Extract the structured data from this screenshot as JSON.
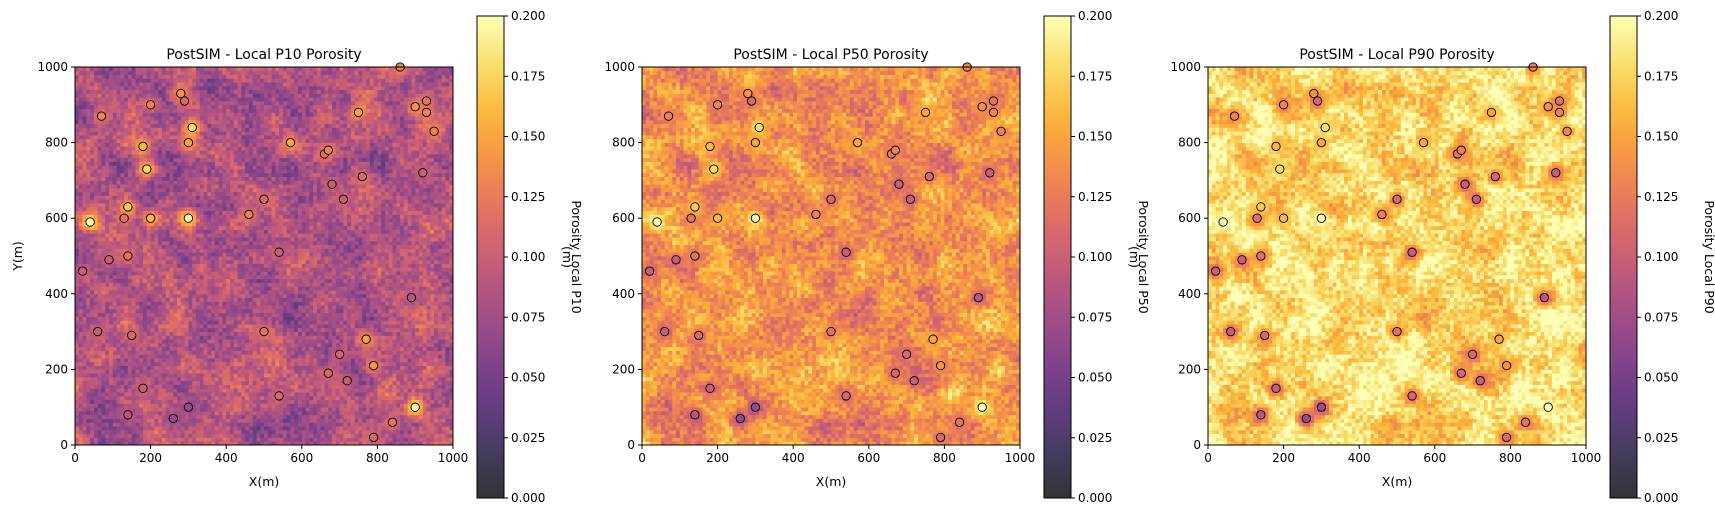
{
  "colormap": {
    "name": "inferno",
    "stops": [
      "#000004",
      "#1b0c41",
      "#4a0c6b",
      "#781c6d",
      "#a52c60",
      "#cf4446",
      "#ed6925",
      "#fb9b06",
      "#f7d13d",
      "#fcffa4"
    ],
    "alpha": 0.8
  },
  "marker_edge_color": "#000000",
  "chart_data": [
    {
      "type": "heatmap",
      "title": "PostSIM - Local P10 Porosity",
      "xlabel": "X(m)",
      "ylabel": "Y(m)",
      "xlim": [
        0,
        1000
      ],
      "ylim": [
        0,
        1000
      ],
      "grid_cells": [
        100,
        100
      ],
      "mean_porosity": 0.085,
      "xticks": [
        "0",
        "200",
        "400",
        "600",
        "800",
        "1000"
      ],
      "yticks": [
        "0",
        "200",
        "400",
        "600",
        "800",
        "1000"
      ],
      "colorbar": {
        "label": "Porosity Local P10",
        "extra_label": "(m)",
        "range": [
          0.0,
          0.2
        ],
        "ticks": [
          "0.000",
          "0.025",
          "0.050",
          "0.075",
          "0.100",
          "0.125",
          "0.150",
          "0.175",
          "0.200"
        ]
      }
    },
    {
      "type": "heatmap",
      "title": "PostSIM - Local P50 Porosity",
      "xlabel": "X(m)",
      "ylabel": "",
      "xlim": [
        0,
        1000
      ],
      "ylim": [
        0,
        1000
      ],
      "grid_cells": [
        100,
        100
      ],
      "mean_porosity": 0.14,
      "xticks": [
        "0",
        "200",
        "400",
        "600",
        "800",
        "1000"
      ],
      "yticks": [
        "0",
        "200",
        "400",
        "600",
        "800",
        "1000"
      ],
      "colorbar": {
        "label": "Porosity Local P50",
        "extra_label": "(m)",
        "range": [
          0.0,
          0.2
        ],
        "ticks": [
          "0.000",
          "0.025",
          "0.050",
          "0.075",
          "0.100",
          "0.125",
          "0.150",
          "0.175",
          "0.200"
        ]
      }
    },
    {
      "type": "heatmap",
      "title": "PostSIM - Local P90 Porosity",
      "xlabel": "X(m)",
      "ylabel": "",
      "xlim": [
        0,
        1000
      ],
      "ylim": [
        0,
        1000
      ],
      "grid_cells": [
        100,
        100
      ],
      "mean_porosity": 0.18,
      "xticks": [
        "0",
        "200",
        "400",
        "600",
        "800",
        "1000"
      ],
      "yticks": [
        "0",
        "200",
        "400",
        "600",
        "800",
        "1000"
      ],
      "colorbar": {
        "label": "Porosity Local P90",
        "extra_label": "",
        "range": [
          0.0,
          0.2
        ],
        "ticks": [
          "0.000",
          "0.025",
          "0.050",
          "0.075",
          "0.100",
          "0.125",
          "0.150",
          "0.175",
          "0.200"
        ]
      }
    }
  ],
  "well_data": [
    [
      20,
      460,
      0.1
    ],
    [
      40,
      590,
      0.2
    ],
    [
      60,
      300,
      0.1
    ],
    [
      70,
      870,
      0.13
    ],
    [
      90,
      490,
      0.1
    ],
    [
      130,
      600,
      0.12
    ],
    [
      140,
      630,
      0.17
    ],
    [
      140,
      500,
      0.12
    ],
    [
      140,
      80,
      0.09
    ],
    [
      150,
      290,
      0.11
    ],
    [
      180,
      790,
      0.16
    ],
    [
      180,
      150,
      0.1
    ],
    [
      190,
      730,
      0.18
    ],
    [
      200,
      900,
      0.13
    ],
    [
      200,
      600,
      0.16
    ],
    [
      260,
      70,
      0.07
    ],
    [
      280,
      930,
      0.14
    ],
    [
      290,
      910,
      0.11
    ],
    [
      300,
      800,
      0.15
    ],
    [
      300,
      600,
      0.2
    ],
    [
      300,
      100,
      0.07
    ],
    [
      310,
      840,
      0.18
    ],
    [
      460,
      610,
      0.13
    ],
    [
      500,
      300,
      0.12
    ],
    [
      500,
      650,
      0.11
    ],
    [
      540,
      510,
      0.1
    ],
    [
      540,
      130,
      0.11
    ],
    [
      570,
      800,
      0.15
    ],
    [
      660,
      770,
      0.12
    ],
    [
      670,
      780,
      0.13
    ],
    [
      670,
      190,
      0.11
    ],
    [
      680,
      690,
      0.1
    ],
    [
      700,
      240,
      0.11
    ],
    [
      710,
      650,
      0.1
    ],
    [
      720,
      170,
      0.1
    ],
    [
      750,
      880,
      0.15
    ],
    [
      760,
      710,
      0.11
    ],
    [
      770,
      280,
      0.15
    ],
    [
      790,
      210,
      0.14
    ],
    [
      790,
      20,
      0.11
    ],
    [
      840,
      60,
      0.12
    ],
    [
      860,
      1000,
      0.13
    ],
    [
      890,
      390,
      0.09
    ],
    [
      900,
      100,
      0.2
    ],
    [
      900,
      895,
      0.14
    ],
    [
      920,
      720,
      0.1
    ],
    [
      930,
      910,
      0.12
    ],
    [
      930,
      880,
      0.13
    ],
    [
      950,
      830,
      0.13
    ]
  ]
}
